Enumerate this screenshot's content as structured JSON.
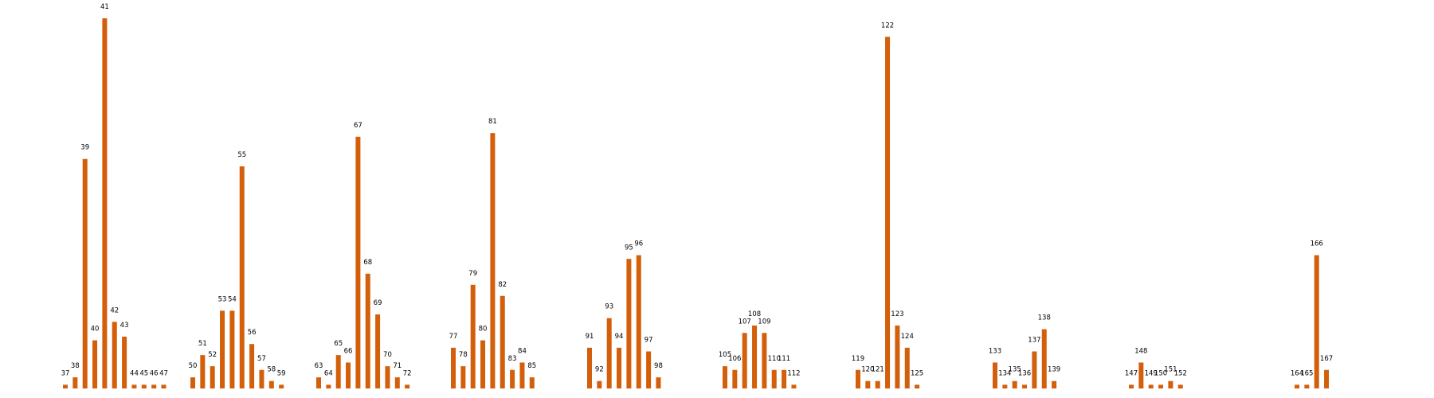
{
  "chart_data": {
    "type": "bar",
    "title": "",
    "xlabel": "",
    "ylabel": "",
    "ylim": [
      0,
      100
    ],
    "axes_visible": false,
    "bar_color": "#d35f0a",
    "groups": [
      {
        "categories": [
          "37",
          "38",
          "39",
          "40",
          "41",
          "42",
          "43",
          "44",
          "45",
          "46",
          "47"
        ],
        "values": [
          1,
          3,
          62,
          13,
          100,
          18,
          14,
          1,
          1,
          1,
          1
        ]
      },
      {
        "categories": [
          "50",
          "51",
          "52",
          "53",
          "54",
          "55",
          "56",
          "57",
          "58",
          "59"
        ],
        "values": [
          3,
          9,
          6,
          21,
          21,
          60,
          12,
          5,
          2,
          1
        ]
      },
      {
        "categories": [
          "63",
          "64",
          "65",
          "66",
          "67",
          "68",
          "69",
          "70",
          "71",
          "72"
        ],
        "values": [
          3,
          1,
          9,
          7,
          68,
          31,
          20,
          6,
          3,
          1
        ]
      },
      {
        "categories": [
          "77",
          "78",
          "79",
          "80",
          "81",
          "82",
          "83",
          "84",
          "85"
        ],
        "values": [
          11,
          6,
          28,
          13,
          69,
          25,
          5,
          7,
          3
        ]
      },
      {
        "categories": [
          "91",
          "92",
          "93",
          "94",
          "95",
          "96",
          "97",
          "98"
        ],
        "values": [
          11,
          2,
          19,
          11,
          35,
          36,
          10,
          3
        ]
      },
      {
        "categories": [
          "105",
          "106",
          "107",
          "108",
          "109",
          "110",
          "111",
          "112"
        ],
        "values": [
          6,
          5,
          15,
          17,
          15,
          5,
          5,
          1
        ]
      },
      {
        "categories": [
          "119",
          "120",
          "121",
          "122",
          "123",
          "124",
          "125"
        ],
        "values": [
          5,
          2,
          2,
          95,
          17,
          11,
          1
        ]
      },
      {
        "categories": [
          "133",
          "134",
          "135",
          "136",
          "137",
          "138",
          "139"
        ],
        "values": [
          7,
          1,
          2,
          1,
          10,
          16,
          2
        ]
      },
      {
        "categories": [
          "147",
          "148",
          "149",
          "150",
          "151",
          "152"
        ],
        "values": [
          1,
          7,
          1,
          1,
          2,
          1
        ]
      },
      {
        "categories": [
          "164",
          "165",
          "166",
          "167"
        ],
        "values": [
          1,
          1,
          36,
          5
        ]
      }
    ]
  }
}
